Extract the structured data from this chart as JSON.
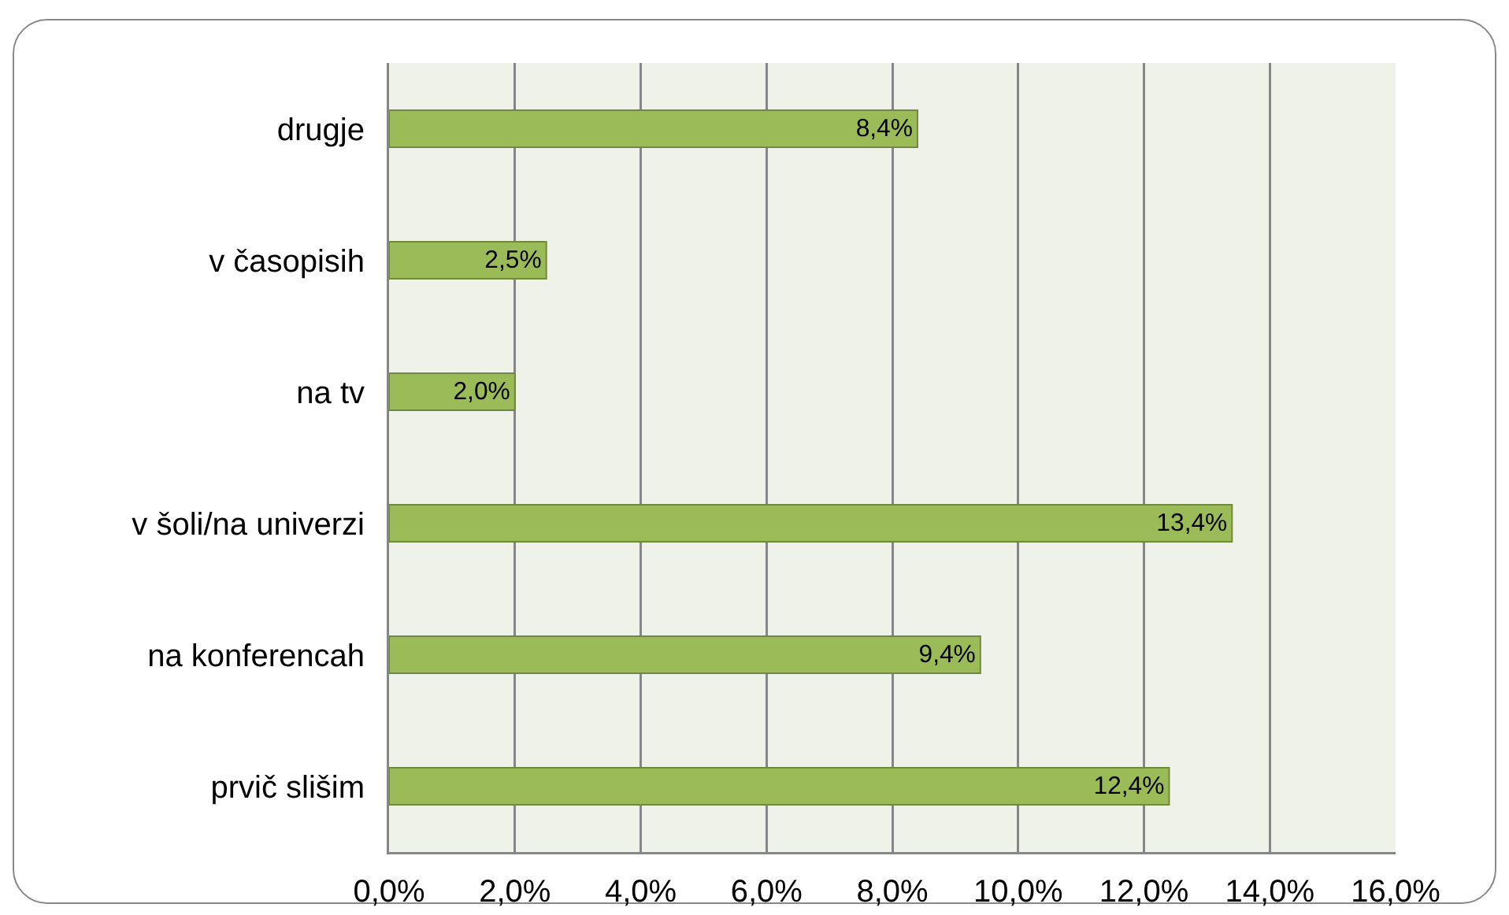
{
  "chart_data": {
    "type": "bar",
    "orientation": "horizontal",
    "categories": [
      "drugje",
      "v časopisih",
      "na tv",
      "v šoli/na univerzi",
      "na konferencah",
      "prvič slišim"
    ],
    "values": [
      8.4,
      2.5,
      2.0,
      13.4,
      9.4,
      12.4
    ],
    "value_labels": [
      "8,4%",
      "2,5%",
      "2,0%",
      "13,4%",
      "9,4%",
      "12,4%"
    ],
    "color": "#9bbb59",
    "xlim": [
      0,
      16
    ],
    "xticks": [
      {
        "value": 0,
        "label": "0,0%"
      },
      {
        "value": 2,
        "label": "2,0%"
      },
      {
        "value": 4,
        "label": "4,0%"
      },
      {
        "value": 6,
        "label": "6,0%"
      },
      {
        "value": 8,
        "label": "8,0%"
      },
      {
        "value": 10,
        "label": "10,0%"
      },
      {
        "value": 12,
        "label": "12,0%"
      },
      {
        "value": 14,
        "label": "14,0%"
      },
      {
        "value": 16,
        "label": "16,0%"
      }
    ],
    "grid": "x",
    "legend": false
  }
}
